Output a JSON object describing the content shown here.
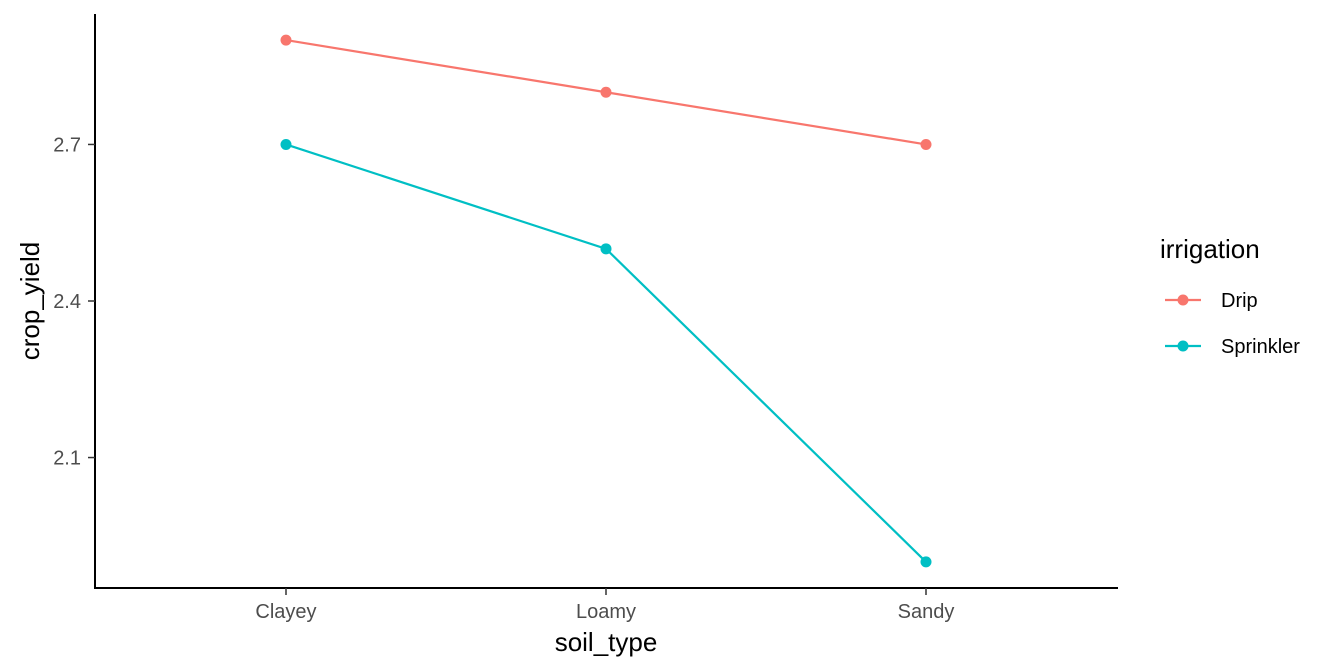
{
  "chart_data": {
    "type": "line",
    "xlabel": "soil_type",
    "ylabel": "crop_yield",
    "categories": [
      "Clayey",
      "Loamy",
      "Sandy"
    ],
    "y_ticks": [
      2.1,
      2.4,
      2.7
    ],
    "y_tick_labels": [
      "2.1",
      "2.4",
      "2.7"
    ],
    "ylim": [
      1.85,
      2.95
    ],
    "grid": false,
    "legend": {
      "title": "irrigation",
      "position": "right"
    },
    "series": [
      {
        "name": "Drip",
        "color": "#F8766D",
        "values": [
          2.9,
          2.8,
          2.7
        ]
      },
      {
        "name": "Sprinkler",
        "color": "#00BFC4",
        "values": [
          2.7,
          2.5,
          1.9
        ]
      }
    ]
  }
}
